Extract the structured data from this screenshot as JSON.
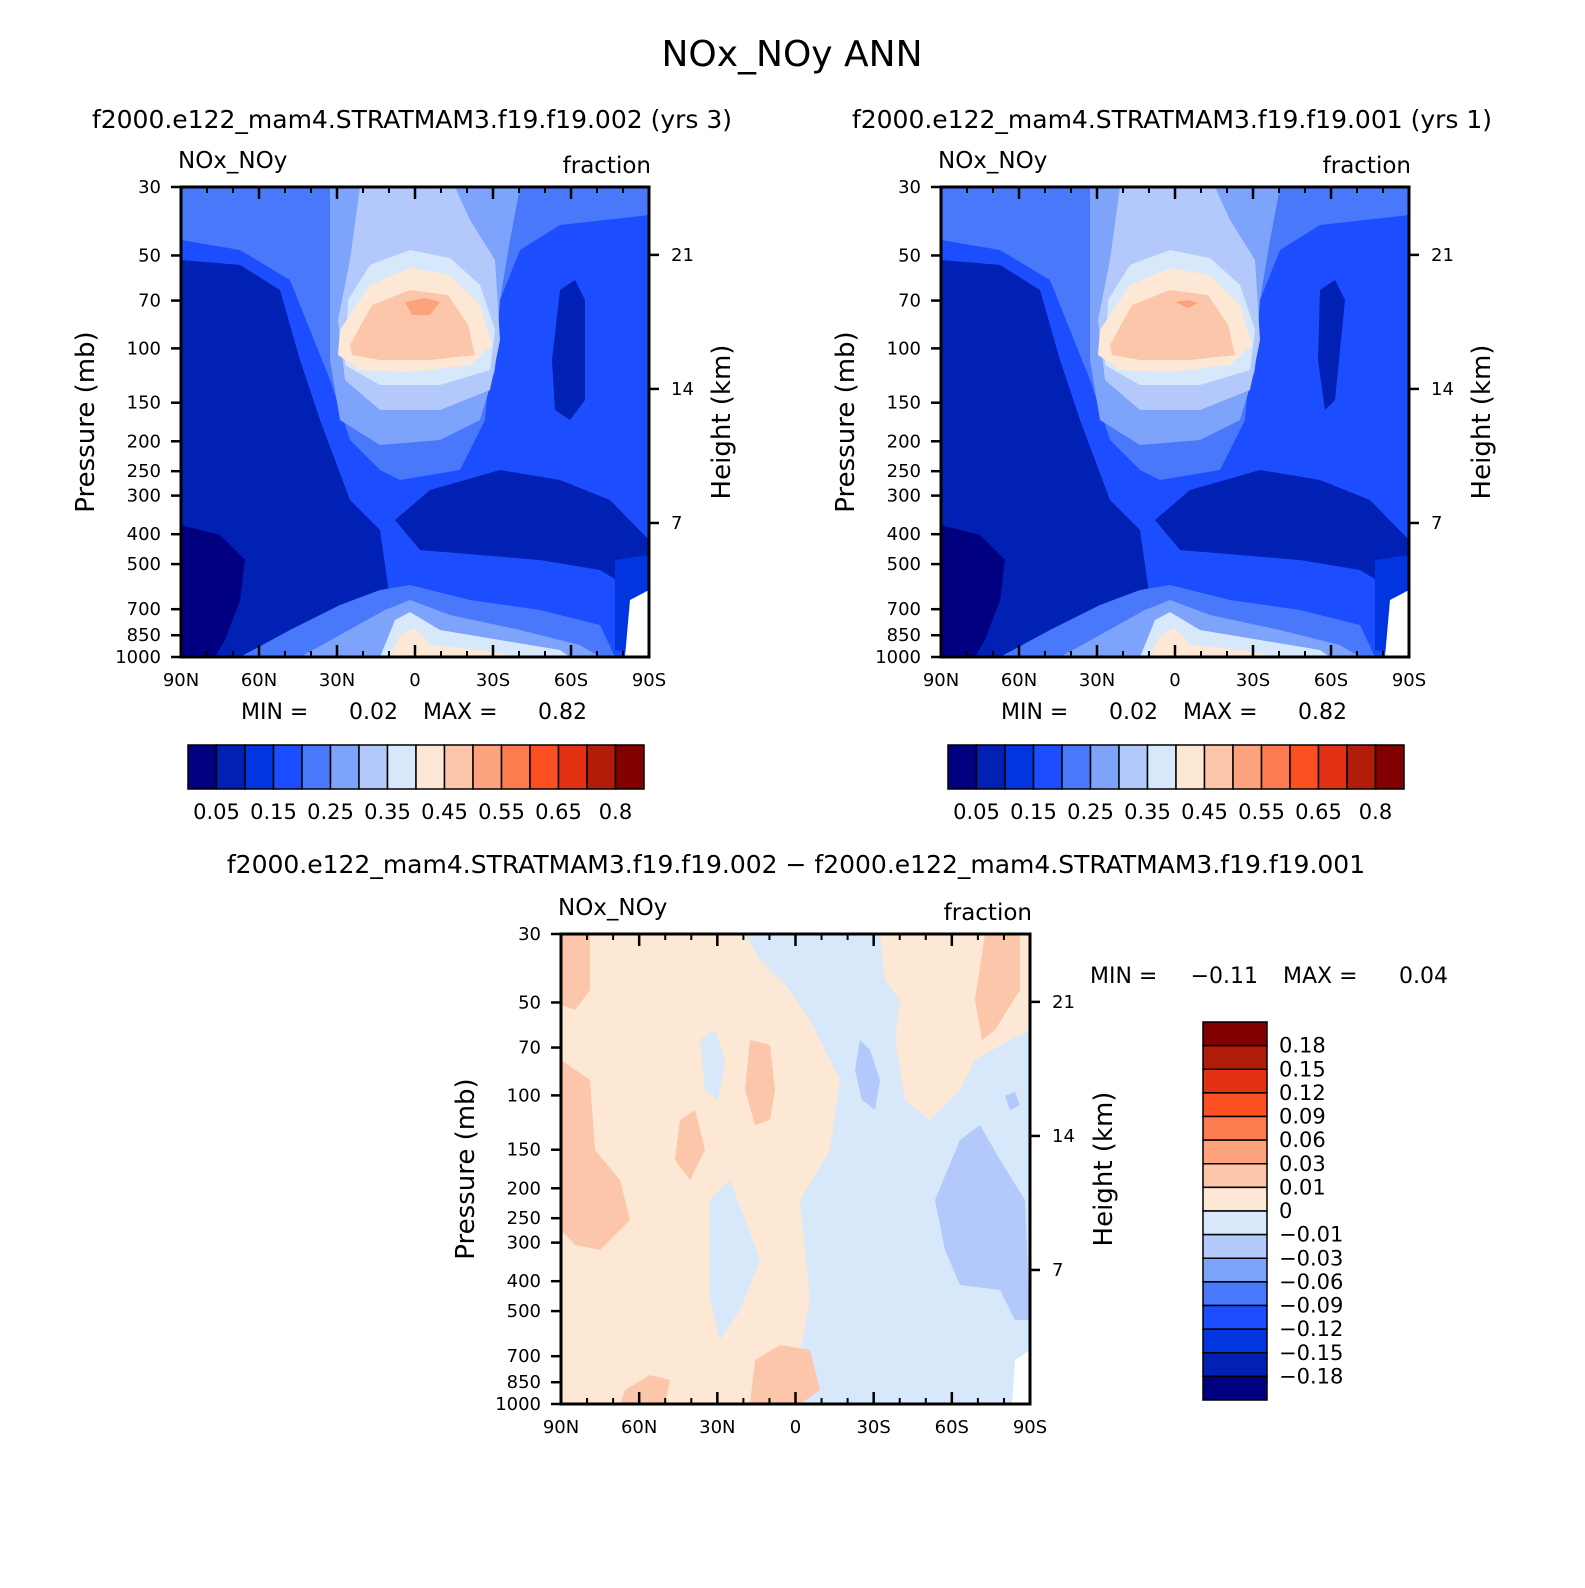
{
  "title": "NOx_NOy ANN",
  "colors": {
    "abs_scale": [
      "#000080",
      "#0021b3",
      "#0035e0",
      "#1c4dff",
      "#4a78fb",
      "#7ea3fb",
      "#b3c9fb",
      "#d6e8f9",
      "#fde8d5",
      "#fcc6aa",
      "#fca37e",
      "#fc7b4f",
      "#fc4f22",
      "#e33213",
      "#b21d0a",
      "#820000"
    ],
    "diff_scale": [
      "#000080",
      "#0021b3",
      "#0035e0",
      "#1c4dff",
      "#4a78fb",
      "#7ea3fb",
      "#b3c9fb",
      "#d6e8f9",
      "#fde8d5",
      "#fcc6aa",
      "#fca37e",
      "#fc7b4f",
      "#fc4f22",
      "#e33213",
      "#b21d0a",
      "#820000"
    ]
  },
  "chart_data": [
    {
      "type": "heatmap",
      "title": "f2000.e122_mam4.STRATMAM3.f19.f19.002 (yrs 3)",
      "left_label": "NOx_NOy",
      "right_label": "fraction",
      "xlabel": "",
      "ylabel": "Pressure (mb)",
      "ylabel_right": "Height (km)",
      "x_ticks": [
        "90N",
        "60N",
        "30N",
        "0",
        "30S",
        "60S",
        "90S"
      ],
      "x_values": [
        90,
        60,
        30,
        0,
        -30,
        -60,
        -90
      ],
      "y_ticks": [
        30,
        50,
        70,
        100,
        150,
        200,
        250,
        300,
        400,
        500,
        700,
        850,
        1000
      ],
      "y_right_ticks": [
        21,
        14,
        7
      ],
      "ylim": [
        1000,
        30
      ],
      "xlim": [
        90,
        -90
      ],
      "stats": {
        "min_label": "MIN =",
        "min": "0.02",
        "max_label": "MAX =",
        "max": "0.82"
      },
      "colorbar": {
        "levels": [
          0.05,
          0.1,
          0.15,
          0.2,
          0.25,
          0.3,
          0.35,
          0.4,
          0.45,
          0.5,
          0.55,
          0.6,
          0.65,
          0.7,
          0.8
        ],
        "labels": [
          "0.05",
          "0.15",
          "0.25",
          "0.35",
          "0.45",
          "0.55",
          "0.65",
          "0.8"
        ]
      },
      "field_description": "values ~0.4-0.6 max near equator 70-100 mb, 0.02-0.1 over high latitudes"
    },
    {
      "type": "heatmap",
      "title": "f2000.e122_mam4.STRATMAM3.f19.f19.001 (yrs 1)",
      "left_label": "NOx_NOy",
      "right_label": "fraction",
      "xlabel": "",
      "ylabel": "Pressure (mb)",
      "ylabel_right": "Height (km)",
      "x_ticks": [
        "90N",
        "60N",
        "30N",
        "0",
        "30S",
        "60S",
        "90S"
      ],
      "x_values": [
        90,
        60,
        30,
        0,
        -30,
        -60,
        -90
      ],
      "y_ticks": [
        30,
        50,
        70,
        100,
        150,
        200,
        250,
        300,
        400,
        500,
        700,
        850,
        1000
      ],
      "y_right_ticks": [
        21,
        14,
        7
      ],
      "ylim": [
        1000,
        30
      ],
      "xlim": [
        90,
        -90
      ],
      "stats": {
        "min_label": "MIN =",
        "min": "0.02",
        "max_label": "MAX =",
        "max": "0.82"
      },
      "colorbar": {
        "levels": [
          0.05,
          0.1,
          0.15,
          0.2,
          0.25,
          0.3,
          0.35,
          0.4,
          0.45,
          0.5,
          0.55,
          0.6,
          0.65,
          0.7,
          0.8
        ],
        "labels": [
          "0.05",
          "0.15",
          "0.25",
          "0.35",
          "0.45",
          "0.55",
          "0.65",
          "0.8"
        ]
      }
    },
    {
      "type": "heatmap",
      "title": "f2000.e122_mam4.STRATMAM3.f19.f19.002 − f2000.e122_mam4.STRATMAM3.f19.f19.001",
      "left_label": "NOx_NOy",
      "right_label": "fraction",
      "xlabel": "",
      "ylabel": "Pressure (mb)",
      "ylabel_right": "Height (km)",
      "x_ticks": [
        "90N",
        "60N",
        "30N",
        "0",
        "30S",
        "60S",
        "90S"
      ],
      "x_values": [
        90,
        60,
        30,
        0,
        -30,
        -60,
        -90
      ],
      "y_ticks": [
        30,
        50,
        70,
        100,
        150,
        200,
        250,
        300,
        400,
        500,
        700,
        850,
        1000
      ],
      "y_right_ticks": [
        21,
        14,
        7
      ],
      "ylim": [
        1000,
        30
      ],
      "xlim": [
        90,
        -90
      ],
      "stats": {
        "min_label": "MIN =",
        "min": "−0.11",
        "max_label": "MAX =",
        "max": "0.04"
      },
      "colorbar": {
        "orientation": "vertical",
        "labels": [
          "0.18",
          "0.15",
          "0.12",
          "0.09",
          "0.06",
          "0.03",
          "0.01",
          "0",
          "−0.01",
          "−0.03",
          "−0.06",
          "−0.09",
          "−0.12",
          "−0.15",
          "−0.18"
        ]
      }
    }
  ]
}
